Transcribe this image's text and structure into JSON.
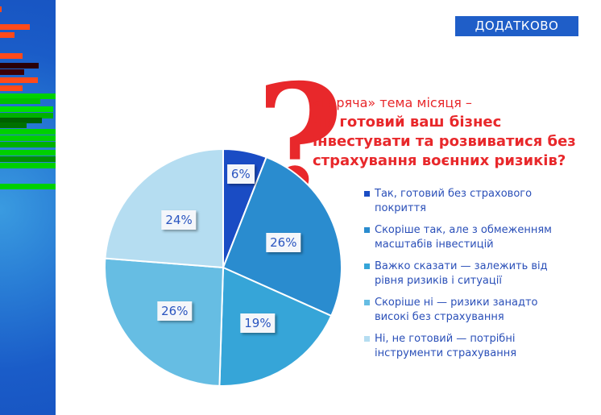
{
  "header": {
    "tag": "ДОДАТКОВО"
  },
  "subtitle": "«Гаряча» тема місяця –",
  "title": "Чи готовий ваш бізнес інвестувати та розвиватися без страхування воєнних ризиків?",
  "chart_data": {
    "type": "pie",
    "title": "Чи готовий ваш бізнес інвестувати та розвиватися без страхування воєнних ризиків?",
    "categories": [
      "Так, готовий без страхового покриття",
      "Скоріше так, але з обмеженням масштабів інвестицій",
      "Важко сказати — залежить від рівня ризиків і ситуації",
      "Скоріше ні — ризики занадто високі без страхування",
      "Ні, не готовий — потрібні інструменти страхування"
    ],
    "values": [
      6,
      26,
      19,
      26,
      24
    ],
    "labels": [
      "6%",
      "26%",
      "19%",
      "26%",
      "24%"
    ],
    "colors": [
      "#1a4cc4",
      "#2a8ccf",
      "#36a5d8",
      "#66bde3",
      "#b5ddf1"
    ],
    "legend": "right"
  }
}
